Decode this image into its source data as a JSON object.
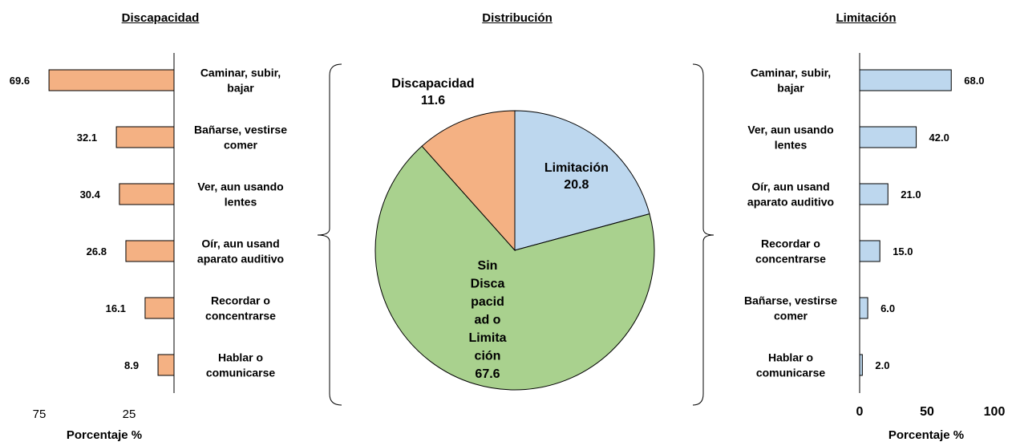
{
  "chart_data": [
    {
      "type": "bar",
      "title": "Discapacidad",
      "xlabel": "Porcentaje %",
      "orientation": "horizontal",
      "direction": "right-to-left",
      "categories": [
        "Caminar, subir, bajar",
        "Bañarse, vestirse comer",
        "Ver, aun usando lentes",
        "Oír, aun usand aparato auditivo",
        "Recordar o concentrarse",
        "Hablar o comunicarse"
      ],
      "category_lines": [
        [
          "Caminar, subir,",
          "bajar"
        ],
        [
          "Bañarse, vestirse",
          "comer"
        ],
        [
          "Ver, aun usando",
          "lentes"
        ],
        [
          "Oír, aun usand",
          "aparato auditivo"
        ],
        [
          "Recordar o",
          "concentrarse"
        ],
        [
          "Hablar o",
          "comunicarse"
        ]
      ],
      "values": [
        69.6,
        32.1,
        30.4,
        26.8,
        16.1,
        8.9
      ],
      "value_labels": [
        "69.6",
        "32.1",
        "30.4",
        "26.8",
        "16.1",
        "8.9"
      ],
      "xticks": [
        75,
        25
      ],
      "xtick_labels": [
        "75",
        "25"
      ],
      "color": "#f4b183"
    },
    {
      "type": "pie",
      "title": "Distribución",
      "slices": [
        {
          "name": "Limitación",
          "value": 20.8,
          "label": "20.8",
          "color": "#bdd7ee"
        },
        {
          "name": "Sin Discapacidad o Limitación",
          "value": 67.6,
          "label": "67.6",
          "color": "#a9d18e"
        },
        {
          "name": "Discapacidad",
          "value": 11.6,
          "label": "11.6",
          "color": "#f4b183"
        }
      ],
      "slice_label_lines": [
        [
          "Limitación",
          "20.8"
        ],
        [
          "Sin",
          "Disca",
          "pacid",
          "ad o",
          "Limita",
          "ción",
          "67.6"
        ],
        [
          "Discapacidad",
          "11.6"
        ]
      ]
    },
    {
      "type": "bar",
      "title": "Limitación",
      "xlabel": "Porcentaje %",
      "orientation": "horizontal",
      "direction": "left-to-right",
      "categories": [
        "Caminar, subir, bajar",
        "Ver, aun usando lentes",
        "Oír, aun usand aparato auditivo",
        "Recordar o concentrarse",
        "Bañarse, vestirse comer",
        "Hablar o comunicarse"
      ],
      "category_lines": [
        [
          "Caminar, subir,",
          "bajar"
        ],
        [
          "Ver, aun usando",
          "lentes"
        ],
        [
          "Oír, aun usand",
          "aparato auditivo"
        ],
        [
          "Recordar o",
          "concentrarse"
        ],
        [
          "Bañarse, vestirse",
          "comer"
        ],
        [
          "Hablar o",
          "comunicarse"
        ]
      ],
      "values": [
        68.0,
        42.0,
        21.0,
        15.0,
        6.0,
        2.0
      ],
      "value_labels": [
        "68.0",
        "42.0",
        "21.0",
        "15.0",
        "6.0",
        "2.0"
      ],
      "xticks": [
        0,
        50,
        100
      ],
      "xtick_labels": [
        "0",
        "50",
        "100"
      ],
      "xlim": [
        0,
        100
      ],
      "color": "#bdd7ee"
    }
  ]
}
